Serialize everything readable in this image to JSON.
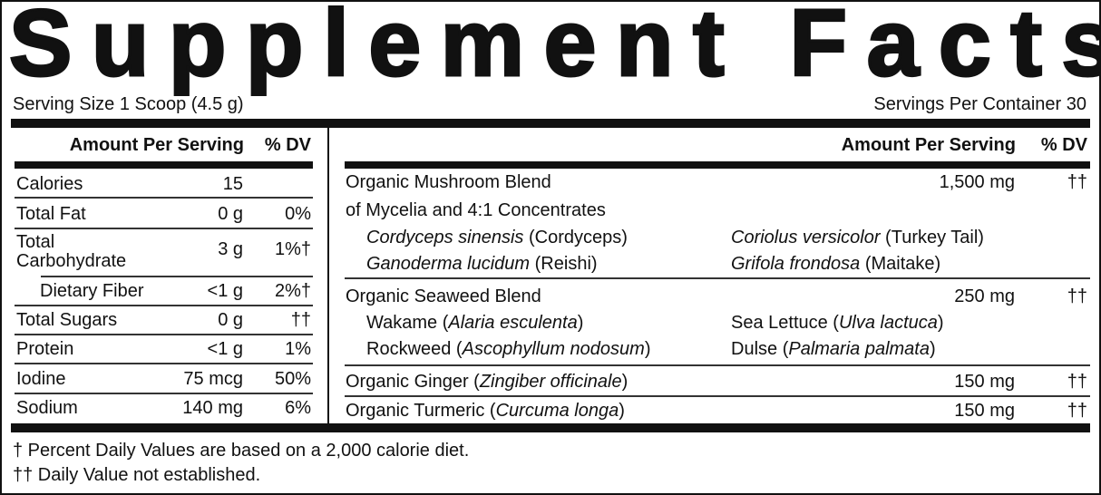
{
  "title": "Supplement Facts",
  "serving_size": "Serving Size 1 Scoop (4.5 g)",
  "servings_per_container": "Servings Per Container 30",
  "left": {
    "header_amount": "Amount Per Serving",
    "header_dv": "% DV",
    "rows": [
      {
        "name": "Calories",
        "amount": "15",
        "dv": ""
      },
      {
        "name": "Total Fat",
        "amount": "0 g",
        "dv": "0%"
      },
      {
        "name": "Total",
        "name2": "Carbohydrate",
        "amount": "3 g",
        "dv": "1%†"
      },
      {
        "name": "Dietary Fiber",
        "amount": "<1 g",
        "dv": "2%†"
      },
      {
        "name": "Total Sugars",
        "amount": "0 g",
        "dv": "††"
      },
      {
        "name": "Protein",
        "amount": "<1 g",
        "dv": "1%"
      },
      {
        "name": "Iodine",
        "amount": "75 mcg",
        "dv": "50%"
      },
      {
        "name": "Sodium",
        "amount": "140 mg",
        "dv": "6%"
      }
    ]
  },
  "right": {
    "header_amount": "Amount Per Serving",
    "header_dv": "% DV",
    "mushroom": {
      "name": "Organic Mushroom Blend",
      "name2": "of Mycelia and 4:1 Concentrates",
      "amount": "1,500 mg",
      "dv": "††",
      "items": [
        {
          "it": "Cordyceps sinensis",
          "post": " (Cordyceps)"
        },
        {
          "it": "Coriolus versicolor",
          "post": " (Turkey Tail)"
        },
        {
          "it": "Ganoderma lucidum",
          "post": " (Reishi)"
        },
        {
          "it": "Grifola frondosa",
          "post": " (Maitake)"
        }
      ]
    },
    "seaweed": {
      "name": "Organic Seaweed Blend",
      "amount": "250 mg",
      "dv": "††",
      "items": [
        {
          "pre": "Wakame (",
          "it": "Alaria esculenta",
          "post": ")"
        },
        {
          "pre": "Sea Lettuce (",
          "it": "Ulva lactuca",
          "post": ")"
        },
        {
          "pre": "Rockweed (",
          "it": "Ascophyllum nodosum",
          "post": ")"
        },
        {
          "pre": "Dulse (",
          "it": "Palmaria palmata",
          "post": ")"
        }
      ]
    },
    "ginger": {
      "pre": "Organic Ginger (",
      "it": "Zingiber officinale",
      "post": ")",
      "amount": "150 mg",
      "dv": "††"
    },
    "turmeric": {
      "pre": "Organic Turmeric (",
      "it": "Curcuma longa",
      "post": ")",
      "amount": "150 mg",
      "dv": "††"
    }
  },
  "footnotes": [
    "† Percent Daily Values are based on a 2,000 calorie diet.",
    "†† Daily Value not established."
  ]
}
